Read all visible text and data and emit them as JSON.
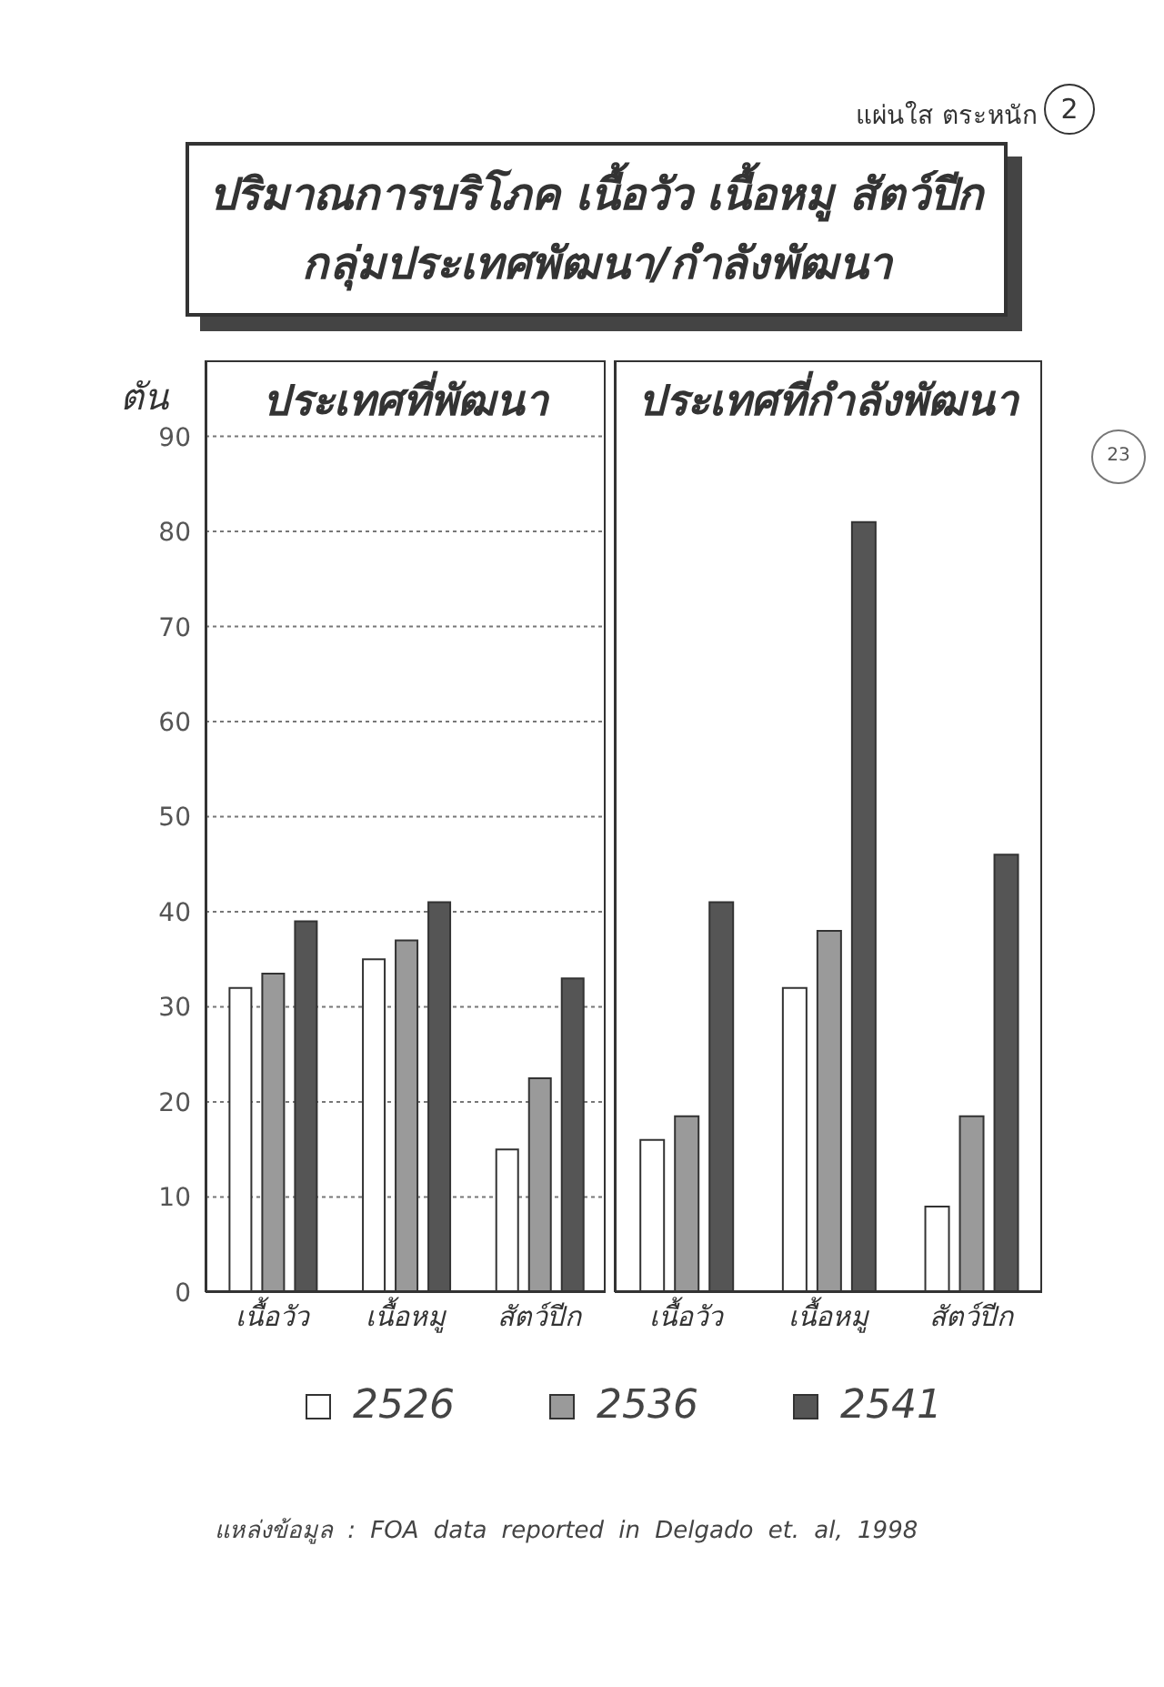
{
  "chart_data": [
    {
      "type": "bar",
      "title": "ปริมาณการบริโภค เนื้อวัว เนื้อหมู สัตว์ปีก\nกลุ่มประเทศพัฒนา/กำลังพัฒนา",
      "subtitle": "ประเทศที่พัฒนา",
      "ylabel": "ตัน",
      "categories": [
        "เนื้อวัว",
        "เนื้อหมู",
        "สัตว์ปีก"
      ],
      "series": [
        {
          "name": "2526",
          "color": "#ffffff",
          "values": [
            32,
            35,
            15
          ]
        },
        {
          "name": "2536",
          "color": "#9a9a9a",
          "values": [
            33.5,
            37,
            22.5
          ]
        },
        {
          "name": "2541",
          "color": "#555555",
          "values": [
            39,
            41,
            33
          ]
        }
      ],
      "ylim": [
        0,
        98
      ],
      "yticks": [
        0,
        10,
        20,
        30,
        40,
        50,
        60,
        70,
        80,
        90
      ],
      "grid": "y",
      "legend": "bottom",
      "annotations": [
        "แผ่นใส ตระหนัก",
        "2",
        "23",
        "แหล่งข้อมูล : FOA data reported in Delgado et. al, 1998"
      ]
    },
    {
      "type": "bar",
      "subtitle": "ประเทศที่กำลังพัฒนา",
      "categories": [
        "เนื้อวัว",
        "เนื้อหมู",
        "สัตว์ปีก"
      ],
      "series": [
        {
          "name": "2526",
          "color": "#ffffff",
          "values": [
            16,
            32,
            9
          ]
        },
        {
          "name": "2536",
          "color": "#9a9a9a",
          "values": [
            18.5,
            38,
            18.5
          ]
        },
        {
          "name": "2541",
          "color": "#555555",
          "values": [
            41,
            81,
            46
          ]
        }
      ],
      "ylim": [
        0,
        98
      ],
      "yticks": [
        0,
        10,
        20,
        30,
        40,
        50,
        60,
        70,
        80,
        90
      ],
      "grid": "y",
      "tick_labels": "x"
    }
  ]
}
